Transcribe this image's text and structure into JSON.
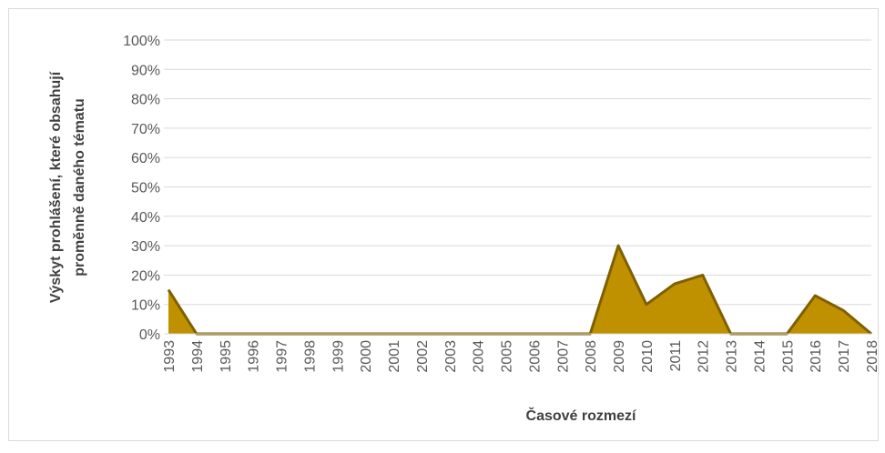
{
  "chart_data": {
    "type": "area",
    "ylabel": [
      "Výskyt prohlášení, které obsahují",
      "proměnně daného tématu"
    ],
    "xlabel": "Časové rozmezí",
    "categories": [
      "1993",
      "1994",
      "1995",
      "1996",
      "1997",
      "1998",
      "1999",
      "2000",
      "2001",
      "2002",
      "2003",
      "2004",
      "2005",
      "2006",
      "2007",
      "2008",
      "2009",
      "2010",
      "2011",
      "2012",
      "2013",
      "2014",
      "2015",
      "2016",
      "2017",
      "2018"
    ],
    "values": [
      15,
      0,
      0,
      0,
      0,
      0,
      0,
      0,
      0,
      0,
      0,
      0,
      0,
      0,
      0,
      0,
      30,
      10,
      17,
      20,
      0,
      0,
      0,
      13,
      8,
      0
    ],
    "color": "#bf9000",
    "line_color": "#7f6000",
    "ylim": [
      0,
      100
    ],
    "yticks": [
      {
        "value": 0,
        "label": "0%"
      },
      {
        "value": 10,
        "label": "10%"
      },
      {
        "value": 20,
        "label": "20%"
      },
      {
        "value": 30,
        "label": "30%"
      },
      {
        "value": 40,
        "label": "40%"
      },
      {
        "value": 50,
        "label": "50%"
      },
      {
        "value": 60,
        "label": "60%"
      },
      {
        "value": 70,
        "label": "70%"
      },
      {
        "value": 80,
        "label": "80%"
      },
      {
        "value": 90,
        "label": "90%"
      },
      {
        "value": 100,
        "label": "100%"
      }
    ],
    "grid": true
  }
}
